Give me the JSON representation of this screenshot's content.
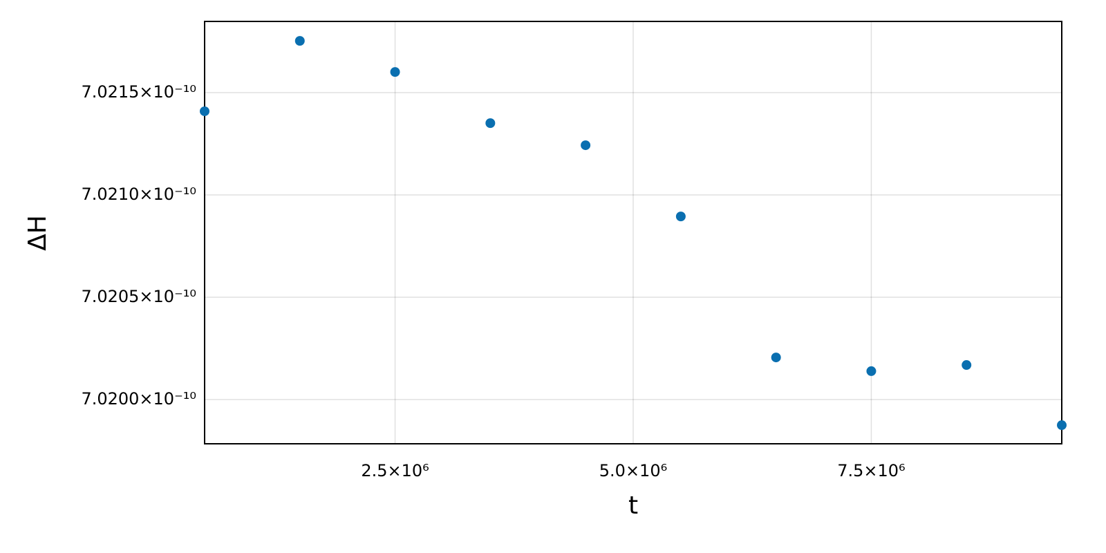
{
  "chart_data": {
    "type": "scatter",
    "xlabel": "t",
    "ylabel": "ΔH",
    "x": [
      500000,
      1500000,
      2500000,
      3500000,
      4500000,
      5500000,
      6500000,
      7500000,
      8500000,
      9500000
    ],
    "values": [
      7.021409e-10,
      7.021753e-10,
      7.021601e-10,
      7.021351e-10,
      7.021243e-10,
      7.020895e-10,
      7.020206e-10,
      7.020139e-10,
      7.020169e-10,
      7.019875e-10
    ],
    "color": "#0a6fb0",
    "xlim": [
      500000,
      9500000
    ],
    "ylim": [
      7.019784e-10,
      7.021848e-10
    ],
    "xticks": [
      {
        "value": 2500000,
        "label": "2.5×10⁶"
      },
      {
        "value": 5000000,
        "label": "5.0×10⁶"
      },
      {
        "value": 7500000,
        "label": "7.5×10⁶"
      }
    ],
    "yticks": [
      {
        "value": 7.02e-10,
        "label": "7.0200×10⁻¹⁰"
      },
      {
        "value": 7.0205e-10,
        "label": "7.0205×10⁻¹⁰"
      },
      {
        "value": 7.021e-10,
        "label": "7.0210×10⁻¹⁰"
      },
      {
        "value": 7.0215e-10,
        "label": "7.0215×10⁻¹⁰"
      }
    ],
    "grid": true
  }
}
